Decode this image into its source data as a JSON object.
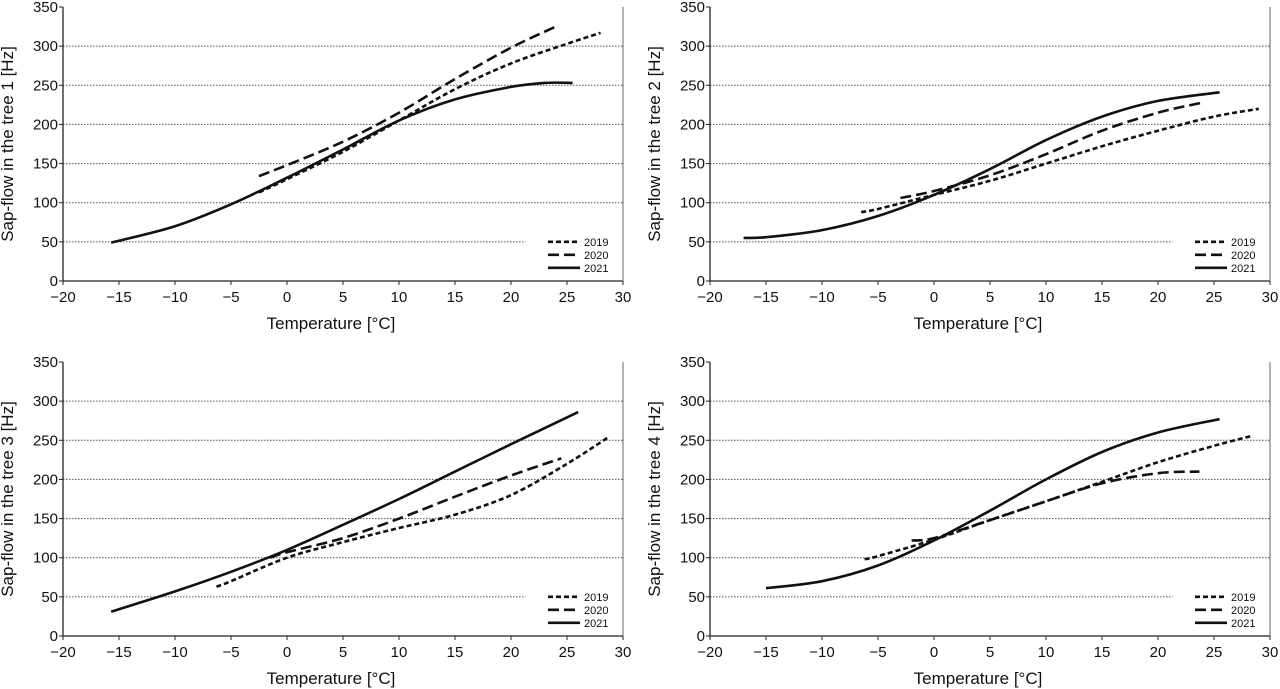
{
  "chart_data": [
    {
      "type": "line",
      "title": "",
      "xlabel": "Temperature [°C]",
      "ylabel": "Sap-flow in the tree 1 [Hz]",
      "xlim": [
        -20,
        30
      ],
      "ylim": [
        0,
        350
      ],
      "xticks": [
        -20,
        -15,
        -10,
        -5,
        0,
        5,
        10,
        15,
        20,
        25,
        30
      ],
      "yticks": [
        0,
        50,
        100,
        150,
        200,
        250,
        300,
        350
      ],
      "grid": "horizontal dotted",
      "legend": "bottom-right",
      "series": [
        {
          "name": "2019",
          "style": "short-dash",
          "x": [
            -2.5,
            0,
            5,
            10,
            15,
            20,
            25,
            28
          ],
          "y": [
            113,
            130,
            165,
            205,
            245,
            278,
            303,
            317
          ]
        },
        {
          "name": "2020",
          "style": "long-dash",
          "x": [
            -2.5,
            0,
            5,
            10,
            15,
            20,
            24
          ],
          "y": [
            134,
            148,
            178,
            215,
            258,
            298,
            325
          ]
        },
        {
          "name": "2021",
          "style": "solid",
          "x": [
            -15.7,
            -10,
            -5,
            0,
            5,
            10,
            15,
            20,
            23,
            25.5
          ],
          "y": [
            49,
            70,
            98,
            132,
            168,
            205,
            232,
            248,
            253,
            253
          ]
        }
      ]
    },
    {
      "type": "line",
      "title": "",
      "xlabel": "Temperature [°C]",
      "ylabel": "Sap-flow in the tree 2 [Hz]",
      "xlim": [
        -20,
        30
      ],
      "ylim": [
        0,
        350
      ],
      "xticks": [
        -20,
        -15,
        -10,
        -5,
        0,
        5,
        10,
        15,
        20,
        25,
        30
      ],
      "yticks": [
        0,
        50,
        100,
        150,
        200,
        250,
        300,
        350
      ],
      "grid": "horizontal dotted",
      "legend": "bottom-right",
      "series": [
        {
          "name": "2019",
          "style": "short-dash",
          "x": [
            -6.5,
            -5,
            0,
            5,
            10,
            15,
            20,
            25,
            29
          ],
          "y": [
            88,
            92,
            110,
            128,
            150,
            172,
            192,
            210,
            220
          ]
        },
        {
          "name": "2020",
          "style": "long-dash",
          "x": [
            -3,
            0,
            5,
            10,
            15,
            20,
            24
          ],
          "y": [
            106,
            115,
            135,
            162,
            192,
            215,
            228
          ]
        },
        {
          "name": "2021",
          "style": "solid",
          "x": [
            -17,
            -15,
            -10,
            -5,
            0,
            5,
            10,
            15,
            20,
            25.5
          ],
          "y": [
            55,
            56,
            65,
            83,
            110,
            143,
            180,
            210,
            230,
            241
          ]
        }
      ]
    },
    {
      "type": "line",
      "title": "",
      "xlabel": "Temperature [°C]",
      "ylabel": "Sap-flow in the tree 3 [Hz]",
      "xlim": [
        -20,
        30
      ],
      "ylim": [
        0,
        350
      ],
      "xticks": [
        -20,
        -15,
        -10,
        -5,
        0,
        5,
        10,
        15,
        20,
        25,
        30
      ],
      "yticks": [
        0,
        50,
        100,
        150,
        200,
        250,
        300,
        350
      ],
      "grid": "horizontal dotted",
      "legend": "bottom-right",
      "series": [
        {
          "name": "2019",
          "style": "short-dash",
          "x": [
            -6.3,
            -5,
            0,
            5,
            10,
            15,
            20,
            25,
            28.8
          ],
          "y": [
            63,
            70,
            100,
            120,
            138,
            155,
            180,
            220,
            255
          ]
        },
        {
          "name": "2020",
          "style": "long-dash",
          "x": [
            -1.5,
            0,
            5,
            10,
            15,
            20,
            24.5
          ],
          "y": [
            100,
            107,
            125,
            150,
            178,
            205,
            227
          ]
        },
        {
          "name": "2021",
          "style": "solid",
          "x": [
            -15.7,
            -10,
            -5,
            0,
            5,
            10,
            15,
            20,
            26
          ],
          "y": [
            31,
            57,
            82,
            110,
            142,
            175,
            210,
            245,
            286
          ]
        }
      ]
    },
    {
      "type": "line",
      "title": "",
      "xlabel": "Temperature [°C]",
      "ylabel": "Sap-flow in the tree 4 [Hz]",
      "xlim": [
        -20,
        30
      ],
      "ylim": [
        0,
        350
      ],
      "xticks": [
        -20,
        -15,
        -10,
        -5,
        0,
        5,
        10,
        15,
        20,
        25,
        30
      ],
      "yticks": [
        0,
        50,
        100,
        150,
        200,
        250,
        300,
        350
      ],
      "grid": "horizontal dotted",
      "legend": "bottom-right",
      "series": [
        {
          "name": "2019",
          "style": "short-dash",
          "x": [
            -6.2,
            -5,
            0,
            5,
            10,
            15,
            20,
            25,
            28.5
          ],
          "y": [
            98,
            102,
            123,
            148,
            172,
            197,
            222,
            243,
            256
          ]
        },
        {
          "name": "2020",
          "style": "long-dash",
          "x": [
            -2,
            0,
            5,
            10,
            15,
            20,
            23.7
          ],
          "y": [
            122,
            125,
            148,
            172,
            195,
            208,
            210
          ]
        },
        {
          "name": "2021",
          "style": "solid",
          "x": [
            -15,
            -10,
            -5,
            0,
            5,
            10,
            15,
            20,
            25.5
          ],
          "y": [
            61,
            70,
            90,
            122,
            160,
            200,
            235,
            260,
            277
          ]
        }
      ]
    }
  ]
}
